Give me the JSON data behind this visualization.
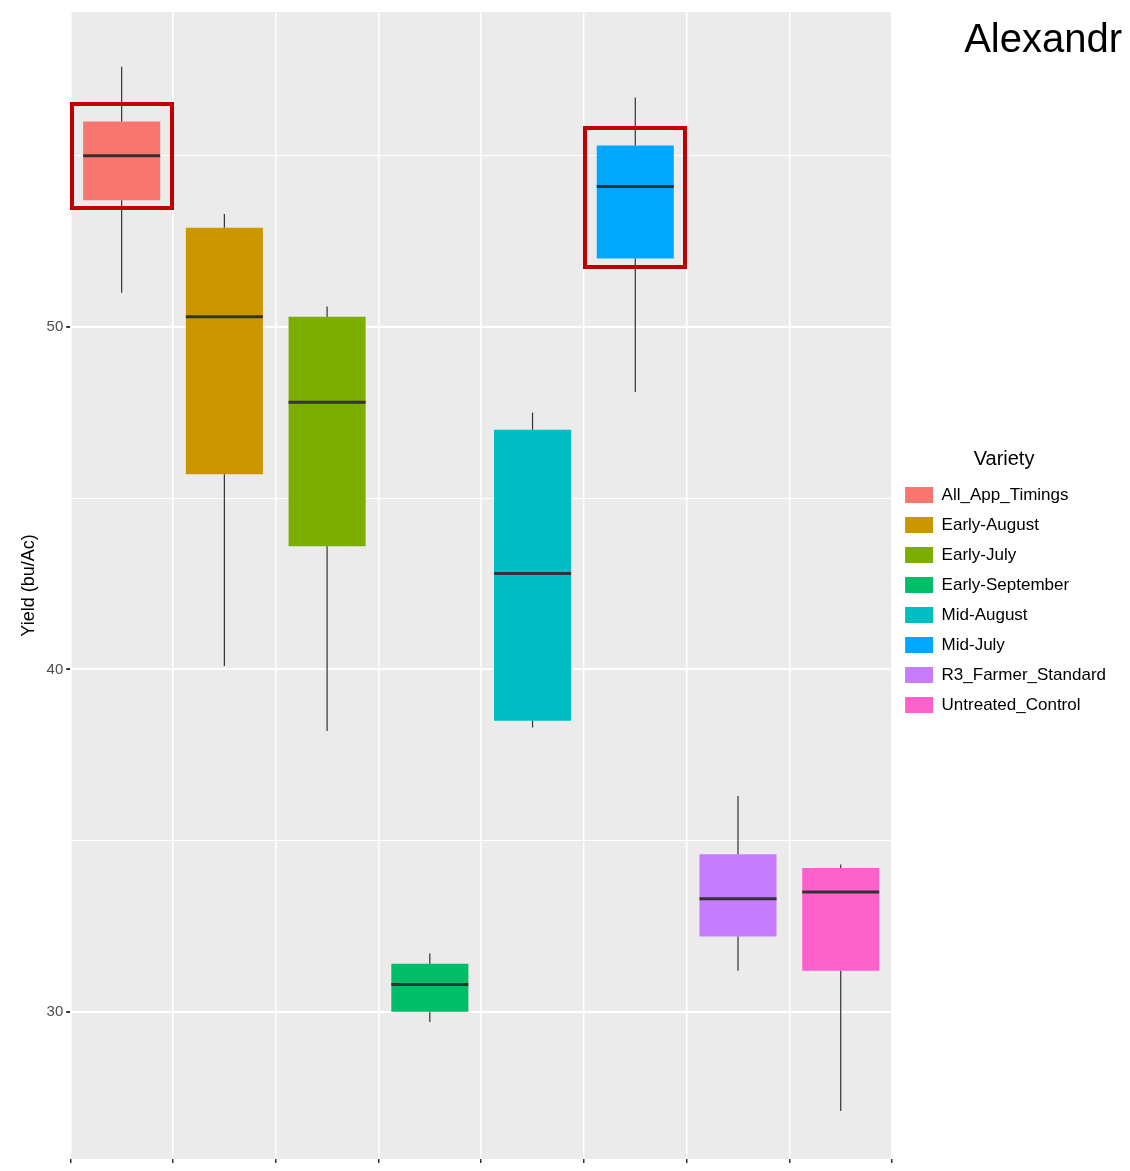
{
  "chart_data": {
    "type": "box",
    "title": "Alexandr",
    "ylabel": "Yield (bu/Ac)",
    "legend_title": "Variety",
    "categories": [
      null,
      null,
      null,
      null,
      null,
      null,
      null,
      null
    ],
    "series": [
      {
        "name": "All_App_Timings",
        "color": "#f8766d",
        "boxes": [
          {
            "low": 51.0,
            "q1": 53.7,
            "median": 55.0,
            "q3": 56.0,
            "high": 57.6
          },
          null,
          null,
          null,
          null,
          null,
          null,
          null
        ]
      },
      {
        "name": "Early-August",
        "color": "#cd9600",
        "boxes": [
          null,
          {
            "low": 40.1,
            "q1": 45.7,
            "median": 50.3,
            "q3": 52.9,
            "high": 53.3
          },
          null,
          null,
          null,
          null,
          null,
          null
        ]
      },
      {
        "name": "Early-July",
        "color": "#7cae00",
        "boxes": [
          null,
          null,
          {
            "low": 38.2,
            "q1": 43.6,
            "median": 47.8,
            "q3": 50.3,
            "high": 50.6
          },
          null,
          null,
          null,
          null,
          null
        ]
      },
      {
        "name": "Early-September",
        "color": "#00be67",
        "boxes": [
          null,
          null,
          null,
          {
            "low": 29.7,
            "q1": 30.0,
            "median": 30.8,
            "q3": 31.4,
            "high": 31.7
          },
          null,
          null,
          null,
          null
        ]
      },
      {
        "name": "Mid-August",
        "color": "#00bfc4",
        "boxes": [
          null,
          null,
          null,
          null,
          {
            "low": 38.3,
            "q1": 38.5,
            "median": 42.8,
            "q3": 47.0,
            "high": 47.5
          },
          null,
          null,
          null
        ]
      },
      {
        "name": "Mid-July",
        "color": "#00a9ff",
        "boxes": [
          null,
          null,
          null,
          null,
          null,
          {
            "low": 48.1,
            "q1": 52.0,
            "median": 54.1,
            "q3": 55.3,
            "high": 56.7
          },
          null,
          null
        ]
      },
      {
        "name": "R3_Farmer_Standard",
        "color": "#c77cff",
        "boxes": [
          null,
          null,
          null,
          null,
          null,
          null,
          {
            "low": 31.2,
            "q1": 32.2,
            "median": 33.3,
            "q3": 34.6,
            "high": 36.3
          },
          null
        ]
      },
      {
        "name": "Untreated_Control",
        "color": "#ff61cc",
        "boxes": [
          null,
          null,
          null,
          null,
          null,
          null,
          null,
          {
            "low": 27.1,
            "q1": 31.2,
            "median": 33.5,
            "q3": 34.2,
            "high": 34.3
          }
        ]
      }
    ],
    "ylim": [
      25.7,
      59.2
    ],
    "yticks": [
      30,
      {
        "value": 35,
        "label": null
      },
      40,
      {
        "value": 45,
        "label": null
      },
      50,
      {
        "value": 55,
        "label": null
      }
    ],
    "grid": true,
    "legend": "right",
    "tick_labels": "y"
  }
}
